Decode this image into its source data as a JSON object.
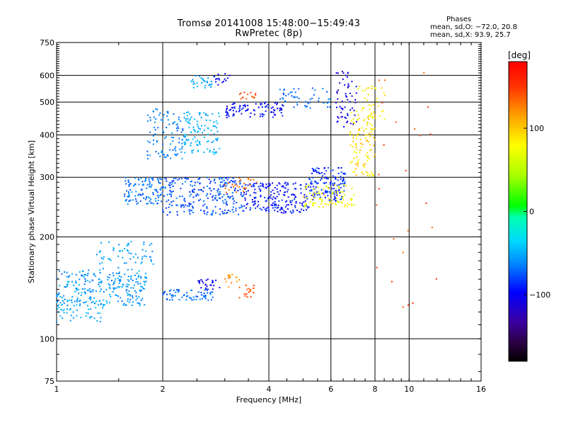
{
  "header": {
    "title_line1": "Tromsø 20141008 15:48:00−15:49:43",
    "title_line2": "RwPretec (8p)"
  },
  "info": {
    "heading": "Phases",
    "line1": "mean, sd,O: −72.0, 20.8",
    "line2": "mean, sd,X:  93.9, 25.7"
  },
  "colorbar": {
    "unit_label": "[deg]",
    "tick_labels": [
      "100",
      "0",
      "−100"
    ],
    "ticks": [
      100,
      0,
      -100
    ],
    "range": [
      -180,
      180
    ]
  },
  "chart_data": {
    "type": "scatter",
    "xlabel": "Frequency [MHz]",
    "ylabel": "Stationary phase Virtual Height [km]",
    "x_scale": "log",
    "y_scale": "log",
    "xlim": [
      1,
      16
    ],
    "ylim": [
      75,
      750
    ],
    "x_ticks": [
      1,
      2,
      4,
      6,
      8,
      10,
      16
    ],
    "x_tick_labels": [
      "1",
      "2",
      "4",
      "6",
      "8",
      "10",
      "16"
    ],
    "y_ticks": [
      75,
      100,
      200,
      300,
      400,
      500,
      600,
      750
    ],
    "y_tick_labels": [
      "75",
      "100",
      "200",
      "300",
      "400",
      "500",
      "600",
      "750"
    ],
    "grid": true,
    "color_scale": "rainbow",
    "clusters": [
      {
        "x": [
          1.0,
          1.8
        ],
        "y": [
          125,
          160
        ],
        "phase": [
          -70,
          -45
        ],
        "count": 260
      },
      {
        "x": [
          1.0,
          1.4
        ],
        "y": [
          112,
          130
        ],
        "phase": [
          -60,
          -40
        ],
        "count": 50
      },
      {
        "x": [
          1.3,
          1.9
        ],
        "y": [
          160,
          195
        ],
        "phase": [
          -65,
          -45
        ],
        "count": 60
      },
      {
        "x": [
          2.0,
          2.8
        ],
        "y": [
          130,
          140
        ],
        "phase": [
          -80,
          -60
        ],
        "count": 70
      },
      {
        "x": [
          2.5,
          2.9
        ],
        "y": [
          140,
          150
        ],
        "phase": [
          -110,
          -90
        ],
        "count": 25
      },
      {
        "x": [
          3.0,
          3.3
        ],
        "y": [
          142,
          155
        ],
        "phase": [
          110,
          130
        ],
        "count": 15
      },
      {
        "x": [
          3.3,
          3.7
        ],
        "y": [
          132,
          145
        ],
        "phase": [
          130,
          150
        ],
        "count": 20
      },
      {
        "x": [
          1.55,
          2.0
        ],
        "y": [
          250,
          300
        ],
        "phase": [
          -80,
          -55
        ],
        "count": 120
      },
      {
        "x": [
          2.0,
          3.4
        ],
        "y": [
          232,
          300
        ],
        "phase": [
          -90,
          -65
        ],
        "count": 260
      },
      {
        "x": [
          3.4,
          5.2
        ],
        "y": [
          235,
          290
        ],
        "phase": [
          -110,
          -80
        ],
        "count": 200
      },
      {
        "x": [
          5.2,
          6.6
        ],
        "y": [
          255,
          320
        ],
        "phase": [
          -100,
          -75
        ],
        "count": 140
      },
      {
        "x": [
          5.0,
          7.0
        ],
        "y": [
          245,
          285
        ],
        "phase": [
          55,
          95
        ],
        "count": 90
      },
      {
        "x": [
          6.8,
          8.0
        ],
        "y": [
          300,
          470
        ],
        "phase": [
          70,
          110
        ],
        "count": 110
      },
      {
        "x": [
          3.0,
          3.8
        ],
        "y": [
          270,
          300
        ],
        "phase": [
          125,
          145
        ],
        "count": 25
      },
      {
        "x": [
          1.8,
          2.3
        ],
        "y": [
          340,
          480
        ],
        "phase": [
          -75,
          -55
        ],
        "count": 100
      },
      {
        "x": [
          2.3,
          2.9
        ],
        "y": [
          350,
          470
        ],
        "phase": [
          -60,
          -40
        ],
        "count": 110
      },
      {
        "x": [
          2.4,
          2.8
        ],
        "y": [
          550,
          600
        ],
        "phase": [
          -60,
          -45
        ],
        "count": 30
      },
      {
        "x": [
          2.8,
          3.1
        ],
        "y": [
          560,
          620
        ],
        "phase": [
          -110,
          -90
        ],
        "count": 15
      },
      {
        "x": [
          3.0,
          4.4
        ],
        "y": [
          450,
          500
        ],
        "phase": [
          -110,
          -85
        ],
        "count": 90
      },
      {
        "x": [
          4.3,
          6.0
        ],
        "y": [
          480,
          550
        ],
        "phase": [
          -80,
          -60
        ],
        "count": 50
      },
      {
        "x": [
          6.2,
          7.1
        ],
        "y": [
          420,
          620
        ],
        "phase": [
          -120,
          -95
        ],
        "count": 60
      },
      {
        "x": [
          7.0,
          8.6
        ],
        "y": [
          420,
          560
        ],
        "phase": [
          60,
          100
        ],
        "count": 40
      },
      {
        "x": [
          3.3,
          3.7
        ],
        "y": [
          505,
          535
        ],
        "phase": [
          130,
          150
        ],
        "count": 15
      },
      {
        "x": [
          8.0,
          12.0
        ],
        "y": [
          120,
          620
        ],
        "phase": [
          130,
          160
        ],
        "count": 25
      }
    ]
  }
}
